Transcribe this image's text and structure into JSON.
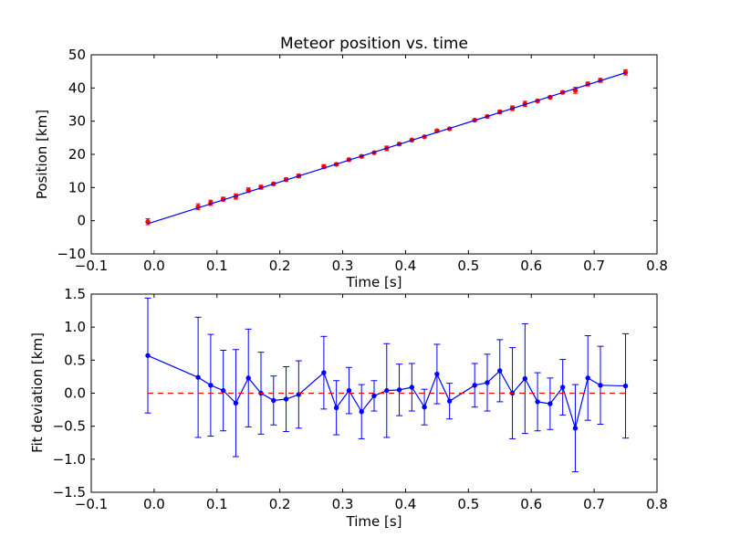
{
  "chart_data": [
    {
      "type": "scatter",
      "title": "Meteor position vs. time",
      "xlabel": "Time [s]",
      "ylabel": "Position [km]",
      "xlim": [
        -0.1,
        0.8
      ],
      "ylim": [
        -10,
        50
      ],
      "xticks": [
        -0.1,
        0.0,
        0.1,
        0.2,
        0.3,
        0.4,
        0.5,
        0.6,
        0.7,
        0.8
      ],
      "xtick_labels": [
        "−0.1",
        "0.0",
        "0.1",
        "0.2",
        "0.3",
        "0.4",
        "0.5",
        "0.6",
        "0.7",
        "0.8"
      ],
      "yticks": [
        -10,
        0,
        10,
        20,
        30,
        40,
        50
      ],
      "ytick_labels": [
        "−10",
        "0",
        "10",
        "20",
        "30",
        "40",
        "50"
      ],
      "grid": false,
      "series": [
        {
          "kind": "errorbar-points",
          "color": "#ff0000",
          "x": [
            -0.01,
            0.07,
            0.09,
            0.11,
            0.13,
            0.15,
            0.17,
            0.19,
            0.21,
            0.23,
            0.27,
            0.29,
            0.31,
            0.33,
            0.35,
            0.37,
            0.39,
            0.41,
            0.43,
            0.45,
            0.47,
            0.51,
            0.53,
            0.55,
            0.57,
            0.59,
            0.61,
            0.63,
            0.65,
            0.67,
            0.69,
            0.71,
            0.75
          ],
          "y": [
            -0.3,
            4.2,
            5.4,
            6.5,
            7.3,
            9.2,
            10.1,
            11.1,
            12.4,
            13.5,
            16.3,
            17.0,
            18.4,
            19.4,
            20.5,
            21.8,
            23.1,
            24.3,
            25.3,
            27.1,
            27.7,
            30.3,
            31.4,
            32.8,
            33.9,
            35.2,
            36.1,
            37.2,
            38.7,
            39.3,
            41.2,
            42.3,
            44.7
          ],
          "yerr": [
            0.9,
            0.9,
            0.8,
            0.6,
            0.8,
            0.7,
            0.6,
            0.4,
            0.5,
            0.5,
            0.6,
            0.4,
            0.4,
            0.4,
            0.2,
            0.7,
            0.4,
            0.4,
            0.3,
            0.4,
            0.3,
            0.3,
            0.4,
            0.5,
            0.7,
            0.8,
            0.4,
            0.4,
            0.4,
            0.9,
            0.6,
            0.6,
            0.8
          ]
        },
        {
          "kind": "fit-line",
          "color": "#0000ff",
          "x": [
            -0.01,
            0.75
          ],
          "y": [
            -0.9,
            44.6
          ]
        }
      ]
    },
    {
      "type": "line",
      "title": "",
      "xlabel": "Time [s]",
      "ylabel": "Fit deviation [km]",
      "xlim": [
        -0.1,
        0.8
      ],
      "ylim": [
        -1.5,
        1.5
      ],
      "xticks": [
        -0.1,
        0.0,
        0.1,
        0.2,
        0.3,
        0.4,
        0.5,
        0.6,
        0.7,
        0.8
      ],
      "xtick_labels": [
        "−0.1",
        "0.0",
        "0.1",
        "0.2",
        "0.3",
        "0.4",
        "0.5",
        "0.6",
        "0.7",
        "0.8"
      ],
      "yticks": [
        -1.5,
        -1.0,
        -0.5,
        0.0,
        0.5,
        1.0,
        1.5
      ],
      "ytick_labels": [
        "−1.5",
        "−1.0",
        "−0.5",
        "0.0",
        "0.5",
        "1.0",
        "1.5"
      ],
      "grid": false,
      "series": [
        {
          "kind": "errorbar-line",
          "color": "#0000ff",
          "x": [
            -0.01,
            0.07,
            0.09,
            0.11,
            0.13,
            0.15,
            0.17,
            0.19,
            0.21,
            0.23,
            0.27,
            0.29,
            0.31,
            0.33,
            0.35,
            0.37,
            0.39,
            0.41,
            0.43,
            0.45,
            0.47,
            0.51,
            0.53,
            0.55,
            0.57,
            0.59,
            0.61,
            0.63,
            0.65,
            0.67,
            0.69,
            0.71,
            0.75
          ],
          "y": [
            0.57,
            0.24,
            0.12,
            0.04,
            -0.15,
            0.23,
            0.0,
            -0.11,
            -0.09,
            -0.02,
            0.31,
            -0.22,
            0.04,
            -0.28,
            -0.04,
            0.04,
            0.05,
            0.09,
            -0.21,
            0.29,
            -0.12,
            0.12,
            0.16,
            0.34,
            0.0,
            0.22,
            -0.13,
            -0.16,
            0.09,
            -0.53,
            0.23,
            0.12,
            0.11
          ],
          "yerr": [
            0.87,
            0.91,
            0.77,
            0.61,
            0.81,
            0.74,
            0.62,
            0.37,
            0.49,
            0.51,
            0.55,
            0.41,
            0.35,
            0.41,
            0.23,
            0.71,
            0.39,
            0.36,
            0.27,
            0.45,
            0.27,
            0.33,
            0.43,
            0.47,
            0.69,
            0.83,
            0.44,
            0.39,
            0.42,
            0.66,
            0.64,
            0.59,
            0.79
          ]
        },
        {
          "kind": "reference-line",
          "style": "dashed",
          "color": "#ff0000",
          "x": [
            -0.01,
            0.75
          ],
          "y": [
            0,
            0
          ]
        }
      ]
    }
  ]
}
